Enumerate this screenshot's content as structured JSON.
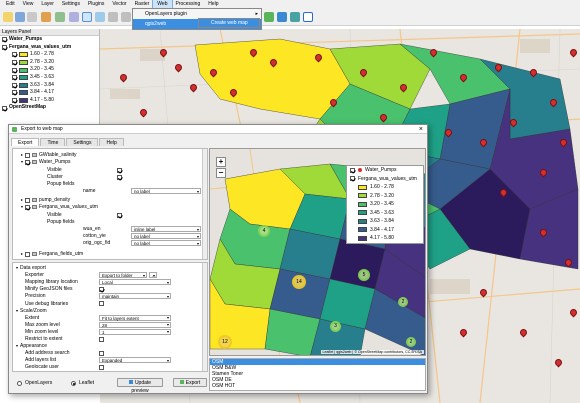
{
  "menubar": {
    "items": [
      "Edit",
      "View",
      "Layer",
      "Settings",
      "Plugins",
      "Vector",
      "Raster",
      "Web",
      "Processing",
      "Help"
    ],
    "active": "Web"
  },
  "web_menu": {
    "items": [
      "OpenLayers plugin",
      "qgis2web"
    ],
    "selected": "qgis2web",
    "submenu_item": "Create web map"
  },
  "layers_panel": {
    "title": "Layers Panel",
    "items": [
      {
        "label": "Water_Pumps",
        "checked": true,
        "bold": true
      },
      {
        "label": "Fergana_wua_values_utm",
        "checked": true,
        "bold": true
      },
      {
        "label": "1.60 - 2.78",
        "checked": true,
        "color": "#fde725"
      },
      {
        "label": "2.78 - 3.20",
        "checked": true,
        "color": "#a0da39"
      },
      {
        "label": "3.20 - 3.45",
        "checked": true,
        "color": "#4ac16d"
      },
      {
        "label": "3.45 - 3.63",
        "checked": true,
        "color": "#1fa187"
      },
      {
        "label": "3.63 - 3.84",
        "checked": true,
        "color": "#277f8e"
      },
      {
        "label": "3.84 - 4.17",
        "checked": true,
        "color": "#365c8d"
      },
      {
        "label": "4.17 - 5.80",
        "checked": true,
        "color": "#46327e"
      },
      {
        "label": "OpenStreetMap",
        "checked": true,
        "bold": true
      }
    ]
  },
  "dialog": {
    "title": "Export to web map",
    "tabs": [
      "Export",
      "Time",
      "Settings",
      "Help"
    ],
    "active_tab": "Export",
    "tree": {
      "rows": [
        {
          "label": "GWtable_salinity",
          "level": 1
        },
        {
          "label": "Water_Pumps",
          "level": 1,
          "checked": true
        },
        {
          "label": "Visible",
          "level": 2
        },
        {
          "label": "Cluster",
          "level": 2
        },
        {
          "label": "Popup fields",
          "level": 2
        },
        {
          "label": "name",
          "level": 3,
          "value": "no label"
        },
        {
          "label": "pump_density",
          "level": 1
        },
        {
          "label": "Fergana_wua_values_utm",
          "level": 1,
          "checked": true
        },
        {
          "label": "Visible",
          "level": 2
        },
        {
          "label": "Popup fields",
          "level": 2
        },
        {
          "label": "wua_en",
          "level": 3,
          "value": "inline label"
        },
        {
          "label": "cotton_yie",
          "level": 3,
          "value": "no label"
        },
        {
          "label": "orig_ogc_fid",
          "level": 3,
          "value": "no label"
        },
        {
          "label": "Fergana_fields_utm",
          "level": 1
        }
      ]
    },
    "props": {
      "rows": [
        {
          "label": "Data export",
          "group": true
        },
        {
          "label": "Exporter",
          "value": "Export to folder",
          "button": "..."
        },
        {
          "label": "Mapping library location",
          "value": "Local"
        },
        {
          "label": "Minify GeoJSON files",
          "value": "✓"
        },
        {
          "label": "Precision",
          "value": "maintain"
        },
        {
          "label": "Use debug libraries",
          "value": ""
        },
        {
          "label": "Scale/Zoom",
          "group": true
        },
        {
          "label": "Extent",
          "value": "Fit to layers extent"
        },
        {
          "label": "Max zoom level",
          "value": "28"
        },
        {
          "label": "Min zoom level",
          "value": "1"
        },
        {
          "label": "Restrict to extent",
          "value": ""
        },
        {
          "label": "Appearance",
          "group": true
        },
        {
          "label": "Add address search",
          "value": ""
        },
        {
          "label": "Add layers list",
          "value": "Expanded"
        },
        {
          "label": "Geolocate user",
          "value": ""
        }
      ]
    },
    "preview_legend": [
      {
        "label": "Water_Pumps",
        "icon": "pin"
      },
      {
        "label": "Fergana_wua_values_utm",
        "icon": "check"
      },
      {
        "label": "1.60 - 2.78",
        "color": "#fde725"
      },
      {
        "label": "2.78 - 3.20",
        "color": "#a0da39"
      },
      {
        "label": "3.20 - 3.45",
        "color": "#4ac16d"
      },
      {
        "label": "3.45 - 3.63",
        "color": "#1fa187"
      },
      {
        "label": "3.63 - 3.84",
        "color": "#277f8e"
      },
      {
        "label": "3.84 - 4.17",
        "color": "#365c8d"
      },
      {
        "label": "4.17 - 5.80",
        "color": "#46327e"
      }
    ],
    "clusters": [
      "4",
      "14",
      "3",
      "12",
      "2",
      "5",
      "2"
    ],
    "attribution": "Leaflet | qgis2web | © OpenStreetMap contributors, CC-BY-SA",
    "basemaps": [
      "OSM",
      "OSM B&W",
      "Stamen Toner",
      "OSM DE",
      "OSM HOT"
    ],
    "basemap_selected": "OSM",
    "bottom": {
      "radio1": "OpenLayers",
      "radio2": "Leaflet",
      "update_label": "Update preview",
      "export_label": "Export"
    }
  },
  "colors": {
    "viridis": [
      "#fde725",
      "#a0da39",
      "#4ac16d",
      "#1fa187",
      "#277f8e",
      "#365c8d",
      "#46327e",
      "#2c1b5c"
    ]
  }
}
